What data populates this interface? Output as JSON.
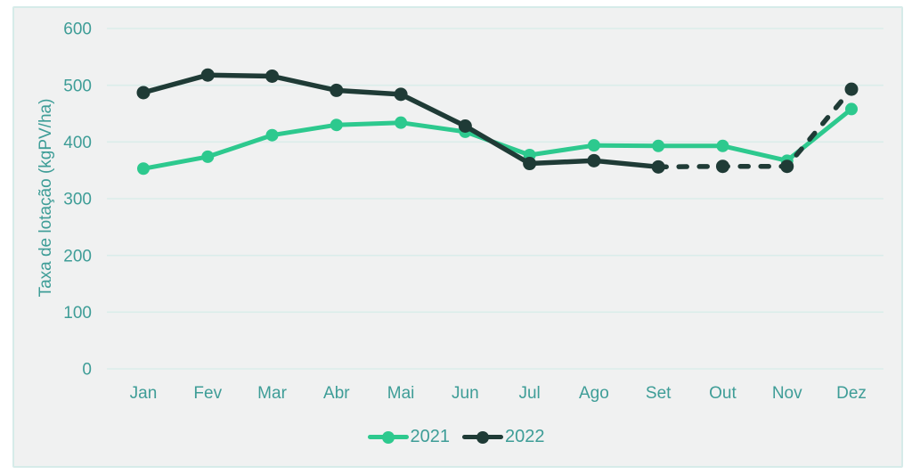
{
  "panel": {
    "background": "#f0f1f1",
    "border_color": "#d6ebe9",
    "page_background": "#ffffff"
  },
  "chart_data": {
    "type": "line",
    "title": "",
    "xlabel": "",
    "ylabel": "Taxa de lotação (kgPV/ha)",
    "categories": [
      "Jan",
      "Fev",
      "Mar",
      "Abr",
      "Mai",
      "Jun",
      "Jul",
      "Ago",
      "Set",
      "Out",
      "Nov",
      "Dez"
    ],
    "y_ticks": [
      0,
      100,
      200,
      300,
      400,
      500,
      600
    ],
    "ylim": [
      0,
      600
    ],
    "grid": true,
    "legend_position": "bottom-center",
    "axis_text_color": "#3e9d97",
    "grid_color": "#daedea",
    "series": [
      {
        "name": "2021",
        "color": "#2dc98e",
        "line_style": "solid",
        "values": [
          353,
          374,
          412,
          430,
          434,
          418,
          377,
          394,
          393,
          393,
          367,
          458
        ]
      },
      {
        "name": "2022",
        "color": "#1f3b36",
        "line_style": "solid_then_dashed",
        "dashed_from_index": 8,
        "values": [
          487,
          518,
          516,
          491,
          484,
          428,
          362,
          367,
          356,
          357,
          357,
          493
        ]
      }
    ]
  }
}
